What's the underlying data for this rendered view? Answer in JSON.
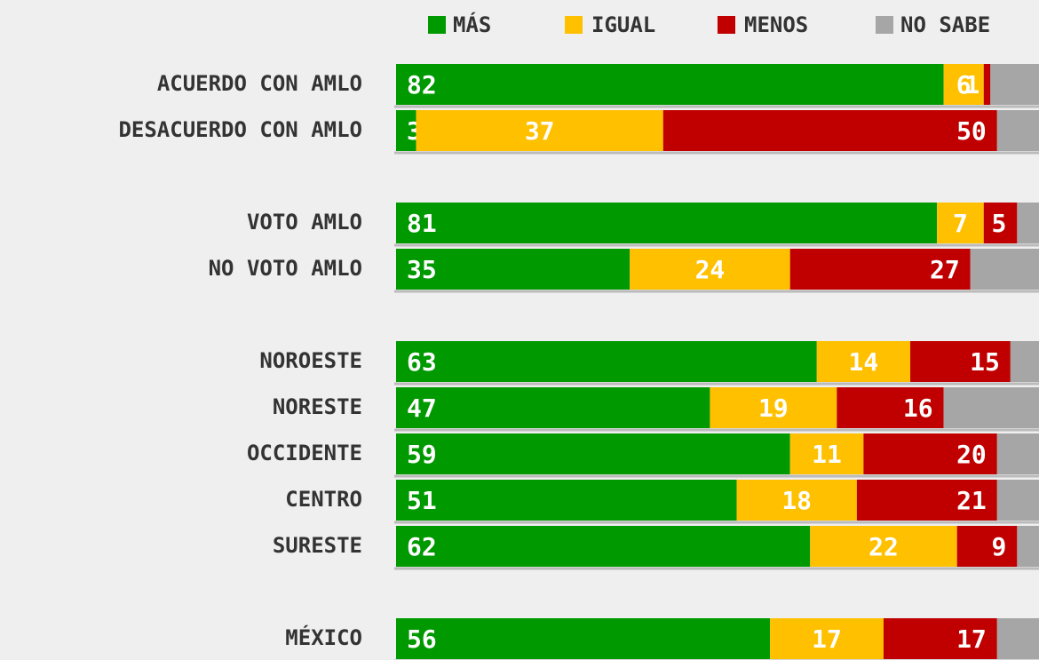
{
  "chart_data": {
    "type": "stacked-bar-horizontal",
    "categories": [
      "ACUERDO CON AMLO",
      "DESACUERDO CON AMLO",
      null,
      "VOTO AMLO",
      "NO VOTO AMLO",
      null,
      "NOROESTE",
      "NORESTE",
      "OCCIDENTE",
      "CENTRO",
      "SURESTE",
      null,
      "MÉXICO"
    ],
    "series": [
      {
        "name": "MÁS",
        "color": "#009900",
        "labels": "start",
        "values": [
          82,
          3,
          null,
          81,
          35,
          null,
          63,
          47,
          59,
          51,
          62,
          null,
          56
        ]
      },
      {
        "name": "IGUAL",
        "color": "#ffc000",
        "labels": "middle",
        "values": [
          6,
          37,
          null,
          7,
          24,
          null,
          14,
          19,
          11,
          18,
          22,
          null,
          17
        ]
      },
      {
        "name": "MENOS",
        "color": "#c00000",
        "labels": "end",
        "values": [
          1,
          50,
          null,
          5,
          27,
          null,
          15,
          16,
          20,
          21,
          9,
          null,
          17
        ]
      },
      {
        "name": "NO SABE",
        "color": "#a6a6a6",
        "labels": "none",
        "values": [
          11,
          10,
          null,
          7,
          14,
          null,
          8,
          18,
          10,
          10,
          7,
          null,
          10
        ]
      }
    ],
    "xlim": [
      0,
      100
    ],
    "legend": "top-right"
  }
}
